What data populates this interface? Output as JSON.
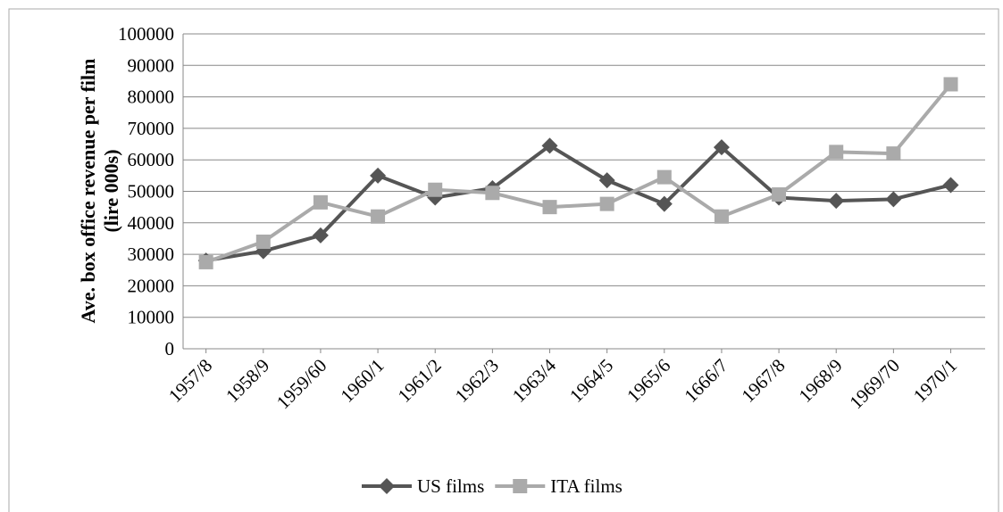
{
  "chart_data": {
    "type": "line",
    "y_label": "Ave. box office revenue per film (lire 000s)",
    "categories": [
      "1957/8",
      "1958/9",
      "1959/60",
      "1960/1",
      "1961/2",
      "1962/3",
      "1963/4",
      "1964/5",
      "1965/6",
      "1666/7",
      "1967/8",
      "1968/9",
      "1969/70",
      "1970/1"
    ],
    "series": [
      {
        "name": "US films",
        "color": "#555555",
        "marker": "diamond",
        "values": [
          28000,
          31000,
          36000,
          55000,
          48000,
          51000,
          64500,
          53500,
          46000,
          64000,
          48000,
          47000,
          47500,
          52000
        ]
      },
      {
        "name": "ITA films",
        "color": "#aaaaaa",
        "marker": "square",
        "values": [
          27500,
          34000,
          46500,
          42000,
          50500,
          49500,
          45000,
          46000,
          54500,
          42000,
          49000,
          62500,
          62000,
          84000
        ]
      }
    ],
    "ylim": [
      0,
      100000
    ],
    "yticks": [
      0,
      10000,
      20000,
      30000,
      40000,
      50000,
      60000,
      70000,
      80000,
      90000,
      100000
    ],
    "grid": true,
    "legend": "bottom"
  }
}
